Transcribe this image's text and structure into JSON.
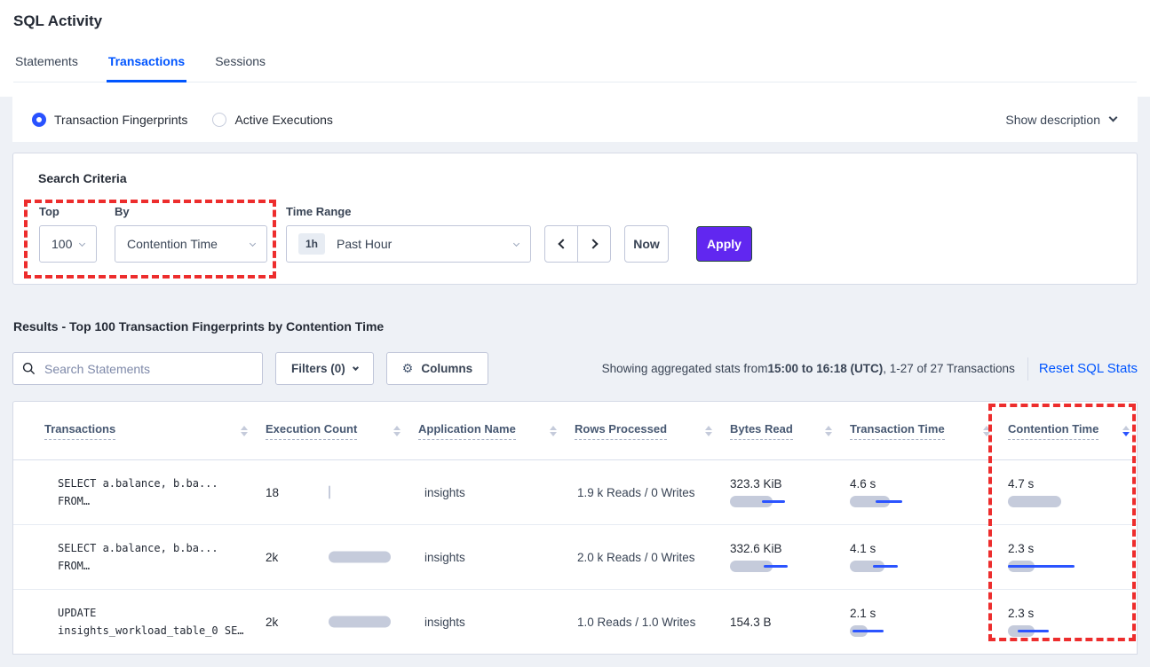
{
  "colors": {
    "accent_blue": "#0055ff",
    "apply_purple": "#6127f0",
    "highlight_red": "#ed2d2d",
    "bar_gray": "#c5cbdb",
    "bar_line_blue": "#2b54ff"
  },
  "page": {
    "title": "SQL Activity"
  },
  "tabs": [
    {
      "label": "Statements",
      "active": false
    },
    {
      "label": "Transactions",
      "active": true
    },
    {
      "label": "Sessions",
      "active": false
    }
  ],
  "view_toggle": {
    "options": [
      {
        "label": "Transaction Fingerprints",
        "selected": true
      },
      {
        "label": "Active Executions",
        "selected": false
      }
    ],
    "show_description_label": "Show description"
  },
  "search_criteria": {
    "heading": "Search Criteria",
    "top_label": "Top",
    "top_value": "100",
    "by_label": "By",
    "by_value": "Contention Time",
    "time_range_label": "Time Range",
    "time_range_badge": "1h",
    "time_range_value": "Past Hour",
    "now_label": "Now",
    "apply_label": "Apply"
  },
  "results": {
    "heading": "Results - Top 100 Transaction Fingerprints by Contention Time",
    "search_placeholder": "Search Statements",
    "filters_label": "Filters (0)",
    "columns_label": "Columns",
    "showing_prefix": "Showing aggregated stats from ",
    "showing_time_bold": "15:00 to 16:18 (UTC)",
    "showing_suffix": ", 1-27 of 27 Transactions",
    "reset_label": "Reset SQL Stats"
  },
  "table": {
    "columns": [
      {
        "label": "Transactions",
        "sort": "none"
      },
      {
        "label": "Execution Count",
        "sort": "none"
      },
      {
        "label": "Application Name",
        "sort": "none"
      },
      {
        "label": "Rows Processed",
        "sort": "none"
      },
      {
        "label": "Bytes Read",
        "sort": "none"
      },
      {
        "label": "Transaction Time",
        "sort": "none"
      },
      {
        "label": "Contention Time",
        "sort": "desc"
      }
    ],
    "rows": [
      {
        "sql_line1": "SELECT a.balance, b.ba...",
        "sql_line2": "FROM…",
        "execution_count": "18",
        "execution_bar": {
          "bar": 2
        },
        "application_name": "insights",
        "rows_processed": "1.9 k Reads / 0 Writes",
        "bytes_read": "323.3 KiB",
        "bytes_read_bar": {
          "bar": 48,
          "line": [
            36,
            26
          ]
        },
        "transaction_time": "4.6 s",
        "transaction_time_bar": {
          "bar": 45,
          "line": [
            29,
            30
          ]
        },
        "contention_time": "4.7 s",
        "contention_time_bar": {
          "bar": 60,
          "line": null
        }
      },
      {
        "sql_line1": "SELECT a.balance, b.ba...",
        "sql_line2": "FROM…",
        "execution_count": "2k",
        "execution_bar": {
          "bar": 70
        },
        "application_name": "insights",
        "rows_processed": "2.0 k Reads / 0 Writes",
        "bytes_read": "332.6 KiB",
        "bytes_read_bar": {
          "bar": 48,
          "line": [
            38,
            27
          ]
        },
        "transaction_time": "4.1 s",
        "transaction_time_bar": {
          "bar": 39,
          "line": [
            26,
            28
          ]
        },
        "contention_time": "2.3 s",
        "contention_time_bar": {
          "bar": 30,
          "line": [
            0,
            75
          ]
        }
      },
      {
        "sql_line1": "UPDATE",
        "sql_line2": "insights_workload_table_0 SE…",
        "execution_count": "2k",
        "execution_bar": {
          "bar": 70
        },
        "application_name": "insights",
        "rows_processed": "1.0 Reads / 1.0 Writes",
        "bytes_read": "154.3 B",
        "bytes_read_bar": null,
        "transaction_time": "2.1 s",
        "transaction_time_bar": {
          "bar": 20,
          "line": [
            3,
            35
          ]
        },
        "contention_time": "2.3 s",
        "contention_time_bar": {
          "bar": 30,
          "line": [
            11,
            35
          ]
        }
      }
    ]
  }
}
